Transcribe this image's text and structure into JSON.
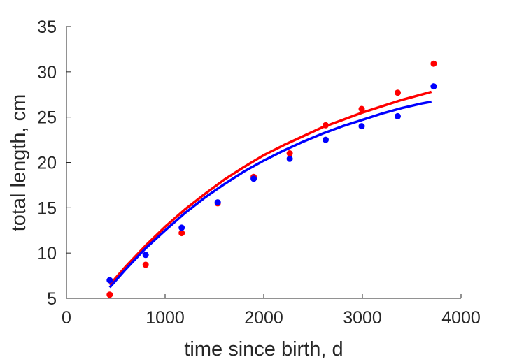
{
  "chart_data": {
    "type": "scatter",
    "xlabel": "time since birth, d",
    "ylabel": "total length, cm",
    "xlim": [
      0,
      4000
    ],
    "ylim": [
      5,
      35
    ],
    "xticks": [
      0,
      1000,
      2000,
      3000,
      4000
    ],
    "yticks": [
      5,
      10,
      15,
      20,
      25,
      30,
      35
    ],
    "grid": false,
    "box": false,
    "series": [
      {
        "kind": "points",
        "color": "#ff0000",
        "x": [
          438,
          803,
          1168,
          1533,
          1898,
          2263,
          2628,
          2993,
          3358,
          3723
        ],
        "y": [
          5.4,
          8.7,
          12.2,
          15.5,
          18.4,
          21.0,
          24.1,
          25.9,
          27.7,
          30.9
        ]
      },
      {
        "kind": "points",
        "color": "#0000ff",
        "x": [
          438,
          803,
          1168,
          1533,
          1898,
          2263,
          2628,
          2993,
          3358,
          3723
        ],
        "y": [
          7.0,
          9.8,
          12.8,
          15.6,
          18.2,
          20.4,
          22.5,
          24.0,
          25.1,
          28.4
        ]
      },
      {
        "kind": "line",
        "color": "#ff0000",
        "x": [
          438,
          600,
          800,
          1000,
          1200,
          1400,
          1600,
          1800,
          2000,
          2200,
          2400,
          2600,
          2800,
          3000,
          3200,
          3400,
          3600,
          3700
        ],
        "y": [
          6.5,
          8.5,
          10.8,
          12.9,
          14.8,
          16.5,
          18.1,
          19.5,
          20.8,
          21.9,
          22.9,
          23.9,
          24.7,
          25.5,
          26.2,
          26.9,
          27.5,
          27.8
        ]
      },
      {
        "kind": "line",
        "color": "#0000ff",
        "x": [
          438,
          600,
          800,
          1000,
          1200,
          1400,
          1600,
          1800,
          2000,
          2200,
          2400,
          2600,
          2800,
          3000,
          3200,
          3400,
          3600,
          3700
        ],
        "y": [
          6.2,
          8.2,
          10.5,
          12.5,
          14.4,
          16.1,
          17.6,
          19.0,
          20.2,
          21.3,
          22.3,
          23.2,
          24.0,
          24.7,
          25.4,
          26.0,
          26.5,
          26.7
        ]
      }
    ]
  }
}
